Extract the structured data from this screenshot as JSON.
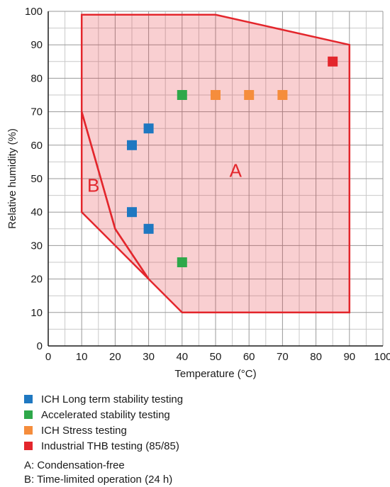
{
  "chart_data": {
    "type": "scatter",
    "title": "",
    "xlabel": "Temperature (°C)",
    "ylabel": "Relative humidity (%)",
    "xlim": [
      0,
      100
    ],
    "ylim": [
      0,
      100
    ],
    "x_ticks": [
      0,
      10,
      20,
      30,
      40,
      50,
      60,
      70,
      80,
      90,
      100
    ],
    "y_ticks": [
      0,
      10,
      20,
      30,
      40,
      50,
      60,
      70,
      80,
      90,
      100
    ],
    "grid": true,
    "regions": [
      {
        "label": "A",
        "polygon": [
          [
            10,
            99
          ],
          [
            50,
            99
          ],
          [
            90,
            90
          ],
          [
            90,
            10
          ],
          [
            40,
            10
          ],
          [
            30,
            20
          ],
          [
            20,
            35
          ],
          [
            10,
            70
          ]
        ],
        "label_at": [
          56,
          52
        ],
        "color": "#e3262c"
      },
      {
        "label": "B",
        "polygon": [
          [
            10,
            70
          ],
          [
            20,
            35
          ],
          [
            30,
            20
          ],
          [
            20,
            30
          ],
          [
            10,
            40
          ]
        ],
        "label_at": [
          13.5,
          47.5
        ],
        "color": "#e3262c"
      }
    ],
    "series": [
      {
        "name": "ICH Long term stability testing",
        "color": "#1f78c1",
        "points": [
          [
            25,
            60
          ],
          [
            30,
            65
          ],
          [
            25,
            40
          ],
          [
            30,
            35
          ]
        ]
      },
      {
        "name": "Accelerated stability testing",
        "color": "#2ea84a",
        "points": [
          [
            40,
            75
          ],
          [
            40,
            25
          ]
        ]
      },
      {
        "name": "ICH Stress testing",
        "color": "#f58d3c",
        "points": [
          [
            50,
            75
          ],
          [
            60,
            75
          ],
          [
            70,
            75
          ]
        ]
      },
      {
        "name": "Industrial THB testing (85/85)",
        "color": "#e3262c",
        "points": [
          [
            85,
            85
          ]
        ]
      }
    ],
    "legend_placement": "bottom-left",
    "notes": [
      "A: Condensation-free",
      "B: Time-limited operation (24 h)"
    ]
  }
}
